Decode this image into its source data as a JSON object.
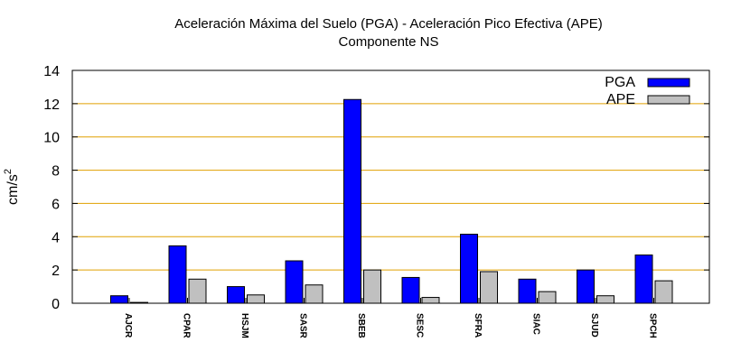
{
  "chart_data": {
    "type": "bar",
    "title_line1": "Aceleración Máxima del Suelo (PGA) -  Aceleración Pico Efectiva (APE)",
    "title_line2": "Componente NS",
    "ylabel_base": "cm/s",
    "ylabel_exp": "2",
    "xlabel": "",
    "ylim": [
      0,
      14
    ],
    "yticks": [
      "0",
      "2",
      "4",
      "6",
      "8",
      "10",
      "12",
      "14"
    ],
    "grid": true,
    "legend_position": "top-right",
    "categories": [
      "AJCR",
      "CPAR",
      "HSJM",
      "SASR",
      "SBEB",
      "SESC",
      "SFRA",
      "SIAC",
      "SJUD",
      "SPCH"
    ],
    "series": [
      {
        "name": "PGA",
        "color": "#0000ff",
        "values": [
          0.45,
          3.45,
          1.0,
          2.55,
          12.25,
          1.55,
          4.15,
          1.45,
          2.0,
          2.9
        ]
      },
      {
        "name": "APE",
        "color": "#c0c0c0",
        "values": [
          0.05,
          1.45,
          0.5,
          1.1,
          2.0,
          0.35,
          1.9,
          0.7,
          0.45,
          1.35
        ]
      }
    ],
    "grid_color": "#e0a000"
  }
}
